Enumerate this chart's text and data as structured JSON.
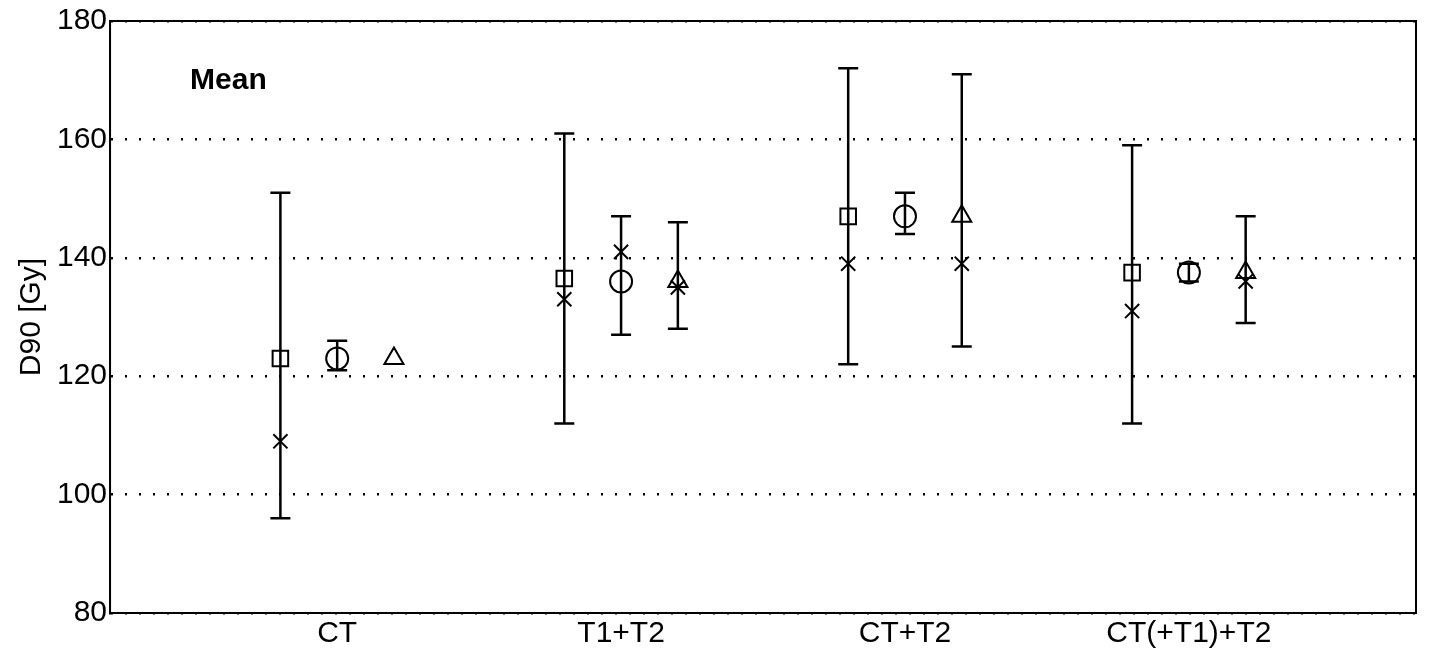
{
  "chart_data": {
    "type": "scatter",
    "title": "Mean",
    "ylabel": "D90 [Gy]",
    "categories": [
      null,
      null,
      null,
      null,
      "CT",
      null,
      null,
      null,
      null,
      "T1+T2",
      null,
      null,
      null,
      null,
      "CT+T2",
      null,
      null,
      null,
      null,
      "CT(+T1)+T2",
      null,
      null,
      null,
      null
    ],
    "series": [
      {
        "color": "#000000",
        "marker": "square",
        "values": [
          null,
          null,
          null,
          123,
          null,
          null,
          null,
          null,
          136.5,
          null,
          null,
          null,
          null,
          147,
          null,
          null,
          null,
          null,
          137.5,
          null,
          null,
          null,
          null,
          null
        ],
        "errors": [
          null,
          null,
          null,
          [
            96,
            151
          ],
          null,
          null,
          null,
          null,
          [
            112,
            161
          ],
          null,
          null,
          null,
          null,
          [
            122,
            172
          ],
          null,
          null,
          null,
          null,
          [
            112,
            159
          ],
          null,
          null,
          null,
          null,
          null
        ]
      },
      {
        "color": "#000000",
        "marker": "cross",
        "values": [
          null,
          null,
          null,
          109,
          null,
          null,
          null,
          null,
          133,
          null,
          null,
          null,
          null,
          139,
          null,
          null,
          null,
          null,
          131,
          null,
          null,
          null,
          null,
          null
        ]
      },
      {
        "color": "#000000",
        "marker": "circle",
        "values": [
          null,
          null,
          null,
          null,
          123,
          null,
          null,
          null,
          null,
          136,
          null,
          null,
          null,
          null,
          147,
          null,
          null,
          null,
          null,
          137.5,
          null,
          null,
          null,
          null
        ],
        "errors": [
          null,
          null,
          null,
          null,
          [
            121,
            126
          ],
          null,
          null,
          null,
          null,
          [
            127,
            147
          ],
          null,
          null,
          null,
          null,
          [
            144,
            151
          ],
          null,
          null,
          null,
          null,
          [
            136,
            139
          ],
          null,
          null,
          null,
          null
        ]
      },
      {
        "color": "#000000",
        "marker": "cross",
        "values": [
          null,
          null,
          null,
          null,
          null,
          null,
          null,
          null,
          null,
          141,
          null,
          null,
          null,
          null,
          null,
          null,
          null,
          null,
          null,
          null,
          null,
          null,
          null,
          null
        ]
      },
      {
        "color": "#000000",
        "marker": "triangle",
        "values": [
          null,
          null,
          null,
          null,
          null,
          123,
          null,
          null,
          null,
          null,
          136,
          null,
          null,
          null,
          null,
          147,
          null,
          null,
          null,
          null,
          137.5,
          null,
          null,
          null
        ],
        "errors": [
          null,
          null,
          null,
          null,
          null,
          null,
          null,
          null,
          null,
          null,
          [
            128,
            146
          ],
          null,
          null,
          null,
          null,
          [
            125,
            171
          ],
          null,
          null,
          null,
          null,
          [
            129,
            147
          ],
          null,
          null,
          null
        ]
      },
      {
        "color": "#000000",
        "marker": "cross",
        "values": [
          null,
          null,
          null,
          null,
          null,
          null,
          null,
          null,
          null,
          null,
          135,
          null,
          null,
          null,
          null,
          139,
          null,
          null,
          null,
          null,
          136,
          null,
          null,
          null
        ]
      }
    ],
    "ylim": [
      80,
      180
    ],
    "yticks": [
      80,
      100,
      120,
      140,
      160,
      180
    ],
    "grid": "y",
    "legend": false
  }
}
